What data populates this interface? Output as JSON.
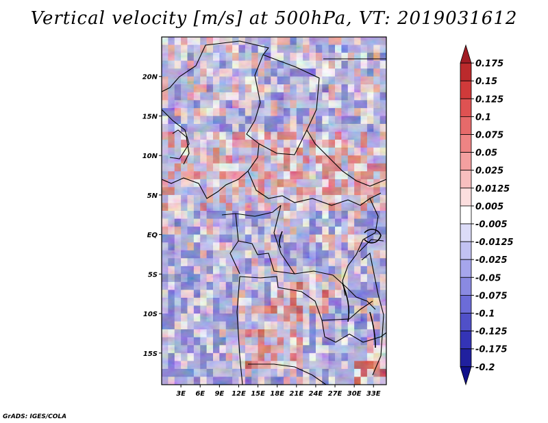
{
  "title": "Vertical velocity [m/s] at 500hPa, VT: 2019031612",
  "credit": "GrADS: IGES/COLA",
  "chart_data": {
    "type": "heatmap",
    "title": "Vertical velocity [m/s] at 500hPa, VT: 2019031612",
    "variable": "Vertical velocity",
    "units": "m/s",
    "level": "500hPa",
    "valid_time": "2019031612",
    "x_range_deg": [
      0,
      35
    ],
    "y_range_deg": [
      -19,
      25
    ],
    "x_ticks": [
      {
        "value": 3,
        "label": "3E"
      },
      {
        "value": 6,
        "label": "6E"
      },
      {
        "value": 9,
        "label": "9E"
      },
      {
        "value": 12,
        "label": "12E"
      },
      {
        "value": 15,
        "label": "15E"
      },
      {
        "value": 18,
        "label": "18E"
      },
      {
        "value": 21,
        "label": "21E"
      },
      {
        "value": 24,
        "label": "24E"
      },
      {
        "value": 27,
        "label": "27E"
      },
      {
        "value": 30,
        "label": "30E"
      },
      {
        "value": 33,
        "label": "33E"
      }
    ],
    "y_ticks": [
      {
        "value": 20,
        "label": "20N"
      },
      {
        "value": 15,
        "label": "15N"
      },
      {
        "value": 10,
        "label": "10N"
      },
      {
        "value": 5,
        "label": "5N"
      },
      {
        "value": 0,
        "label": "EQ"
      },
      {
        "value": -5,
        "label": "5S"
      },
      {
        "value": -10,
        "label": "10S"
      },
      {
        "value": -15,
        "label": "15S"
      }
    ],
    "colorbar": {
      "labels": [
        "0.175",
        "0.15",
        "0.125",
        "0.1",
        "0.075",
        "0.05",
        "0.025",
        "0.0125",
        "0.005",
        "-0.005",
        "-0.0125",
        "-0.025",
        "-0.05",
        "-0.075",
        "-0.1",
        "-0.125",
        "-0.175",
        "-0.2"
      ],
      "colors": [
        "#a01c24",
        "#bb2a2c",
        "#d03a3a",
        "#de5252",
        "#e66a6a",
        "#ee8484",
        "#f4a0a0",
        "#f8bfbf",
        "#fcdede",
        "#ffffff",
        "#dcdcf8",
        "#c2c2f2",
        "#a6a6ec",
        "#8a8ae2",
        "#6c6cd8",
        "#5050c8",
        "#3434b6",
        "#20209e",
        "#10108a"
      ]
    }
  }
}
